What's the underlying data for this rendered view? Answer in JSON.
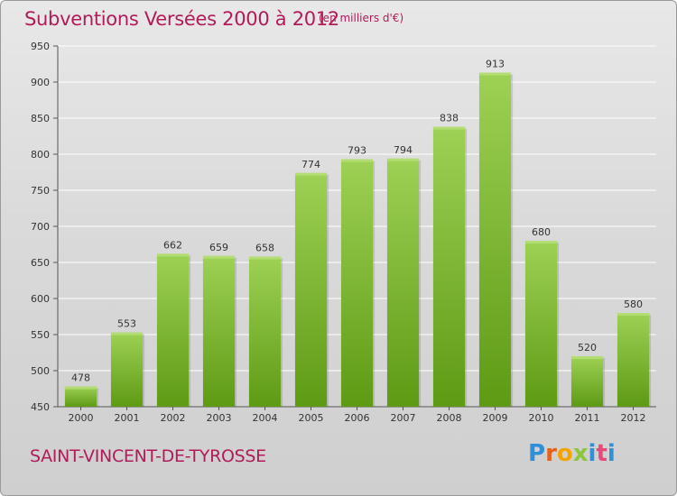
{
  "header": {
    "title": "Subventions Versées 2000 à 2012",
    "unit": "(en milliers d'€)"
  },
  "footer": {
    "commune": "SAINT-VINCENT-DE-TYROSSE",
    "logo_text": "Proxiti"
  },
  "colors": {
    "bar_top": "#9ed155",
    "bar_bottom": "#5e9a14",
    "title": "#b21a5a",
    "grid": "#ffffff"
  },
  "chart_data": {
    "type": "bar",
    "title": "Subventions Versées 2000 à 2012",
    "xlabel": "",
    "ylabel": "",
    "categories": [
      "2000",
      "2001",
      "2002",
      "2003",
      "2004",
      "2005",
      "2006",
      "2007",
      "2008",
      "2009",
      "2010",
      "2011",
      "2012"
    ],
    "values": [
      478,
      553,
      662,
      659,
      658,
      774,
      793,
      794,
      838,
      913,
      680,
      520,
      580
    ],
    "ylim": [
      450,
      950
    ],
    "yticks": [
      450,
      500,
      550,
      600,
      650,
      700,
      750,
      800,
      850,
      900,
      950
    ],
    "grid": true,
    "legend": "none"
  }
}
